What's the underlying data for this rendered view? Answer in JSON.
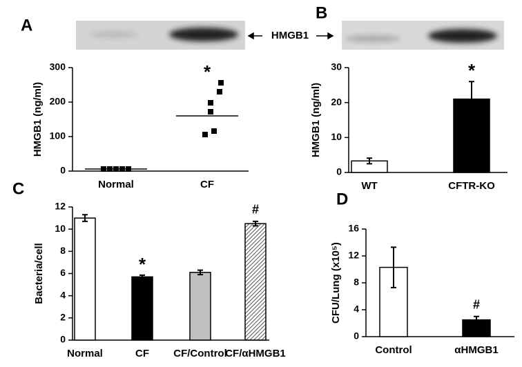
{
  "blot_label": "HMGB1",
  "chart_data": [
    {
      "type": "strip",
      "panel_label": "A",
      "y_label": "HMGB1 (ng/ml)",
      "categories": [
        "Normal",
        "CF"
      ],
      "points": [
        [
          6,
          6,
          6,
          6,
          6
        ],
        [
          256,
          230,
          198,
          172,
          116,
          106
        ]
      ],
      "means": [
        6,
        160
      ],
      "annotations": [
        null,
        "*"
      ],
      "color": "#000000",
      "ylim": [
        0,
        300
      ],
      "yticks": [
        0,
        100,
        200,
        300
      ]
    },
    {
      "type": "bar",
      "panel_label": "B",
      "y_label": "HMGB1 (ng/ml)",
      "categories": [
        "WT",
        "CFTR-KO"
      ],
      "values": [
        3.3,
        21
      ],
      "errors": [
        0.8,
        5
      ],
      "colors": [
        "#ffffff",
        "#000000"
      ],
      "hatched": [
        false,
        false
      ],
      "annotations": [
        null,
        "*"
      ],
      "ylim": [
        0,
        30
      ],
      "yticks": [
        0,
        10,
        20,
        30
      ]
    },
    {
      "type": "bar",
      "panel_label": "C",
      "y_label": "Bacteria/cell",
      "categories": [
        "Normal",
        "CF",
        "CF/Control",
        "CF/αHMGB1"
      ],
      "values": [
        11,
        5.7,
        6.1,
        10.5
      ],
      "errors": [
        0.3,
        0.15,
        0.2,
        0.2
      ],
      "colors": [
        "#ffffff",
        "#000000",
        "#c0c0c0",
        "#ffffff"
      ],
      "hatched": [
        false,
        false,
        false,
        true
      ],
      "annotations": [
        null,
        "*",
        null,
        "#"
      ],
      "ylim": [
        0,
        12
      ],
      "yticks": [
        0,
        2,
        4,
        6,
        8,
        10,
        12
      ]
    },
    {
      "type": "bar",
      "panel_label": "D",
      "y_label": "CFU/Lung (x10⁵)",
      "categories": [
        "Control",
        "αHMGB1"
      ],
      "values": [
        10.3,
        2.5
      ],
      "errors": [
        3,
        0.5
      ],
      "colors": [
        "#ffffff",
        "#000000"
      ],
      "hatched": [
        false,
        false
      ],
      "annotations": [
        null,
        "#"
      ],
      "ylim": [
        0,
        16
      ],
      "yticks": [
        0,
        4,
        8,
        12,
        16
      ]
    }
  ]
}
